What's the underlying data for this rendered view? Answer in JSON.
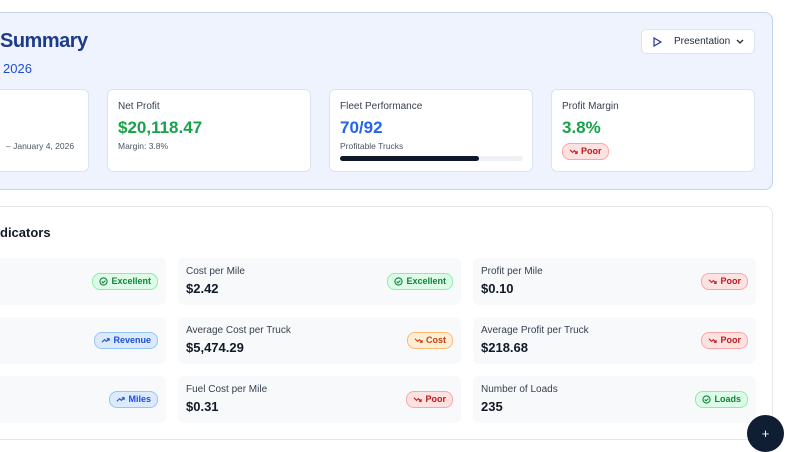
{
  "header": {
    "title": "Summary",
    "subtitle": "2026",
    "button": "Presentation"
  },
  "cards": [
    {
      "note": "– January 4, 2026"
    },
    {
      "label": "Net Profit",
      "value": "$20,118.47",
      "note": "Margin: 3.8%",
      "tone": "green"
    },
    {
      "label": "Fleet Performance",
      "value": "70/92",
      "note": "Profitable Trucks",
      "tone": "blue",
      "progress": 76
    },
    {
      "label": "Profit Margin",
      "value": "3.8%",
      "badge": "Poor",
      "tone": "green",
      "badge_tone": "red"
    }
  ],
  "section": {
    "title": "dicators",
    "kpis": [
      [
        {
          "badge": "Excellent",
          "tone": "green"
        },
        {
          "label": "Cost per Mile",
          "value": "$2.42",
          "badge": "Excellent",
          "tone": "green"
        },
        {
          "label": "Profit per Mile",
          "value": "$0.10",
          "badge": "Poor",
          "tone": "red"
        }
      ],
      [
        {
          "badge": "Revenue",
          "tone": "blue"
        },
        {
          "label": "Average Cost per Truck",
          "value": "$5,474.29",
          "badge": "Cost",
          "tone": "orange"
        },
        {
          "label": "Average Profit per Truck",
          "value": "$218.68",
          "badge": "Poor",
          "tone": "red"
        }
      ],
      [
        {
          "badge": "Miles",
          "tone": "blue"
        },
        {
          "label": "Fuel Cost per Mile",
          "value": "$0.31",
          "badge": "Poor",
          "tone": "red"
        },
        {
          "label": "Number of Loads",
          "value": "235",
          "badge": "Loads",
          "tone": "green"
        }
      ]
    ]
  },
  "fab": "+"
}
